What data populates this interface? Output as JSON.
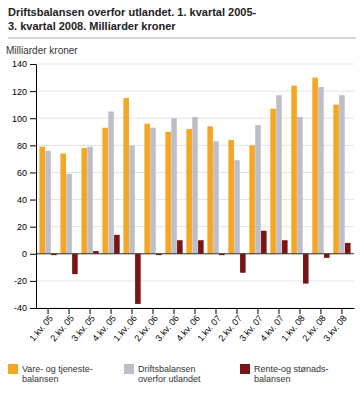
{
  "chart_data": {
    "type": "bar",
    "title": "Driftsbalansen overfor utlandet. 1. kvartal 2005-",
    "subtitle": "3. kvartal 2008. Milliarder kroner",
    "ylabel": "Milliarder kroner",
    "categories": [
      "1.kv. 05",
      "2.kv. 05",
      "3.kv. 05",
      "4.kv. 05",
      "1.kv. 06",
      "2.kv. 06",
      "3.kv. 06",
      "4.kv. 06",
      "1.kv. 07",
      "2.kv. 07",
      "3.kv. 07",
      "4.kv. 07",
      "1.kv. 08",
      "2.kv. 08",
      "3.kv. 08"
    ],
    "series": [
      {
        "name": "Vare- og tjeneste-\nbalansen",
        "color": "#F5A623",
        "values": [
          79,
          74,
          78,
          93,
          115,
          96,
          90,
          92,
          94,
          84,
          80,
          107,
          124,
          130,
          110
        ]
      },
      {
        "name": "Driftsbalansen\noverfor utlandet",
        "color": "#BEBEC8",
        "values": [
          76,
          59,
          79,
          105,
          80,
          93,
          100,
          101,
          83,
          69,
          95,
          117,
          101,
          123,
          117
        ]
      },
      {
        "name": "Rente-og stønads-\nbalansen",
        "color": "#7B1515",
        "values": [
          -1,
          -15,
          2,
          14,
          -37,
          -1,
          10,
          10,
          -1,
          -14,
          17,
          10,
          -22,
          -3,
          8
        ]
      }
    ],
    "ylim": [
      -40,
      140
    ],
    "yticks": [
      -40,
      -20,
      0,
      20,
      40,
      60,
      80,
      100,
      120,
      140
    ],
    "grid": true,
    "legend": "bottom"
  }
}
